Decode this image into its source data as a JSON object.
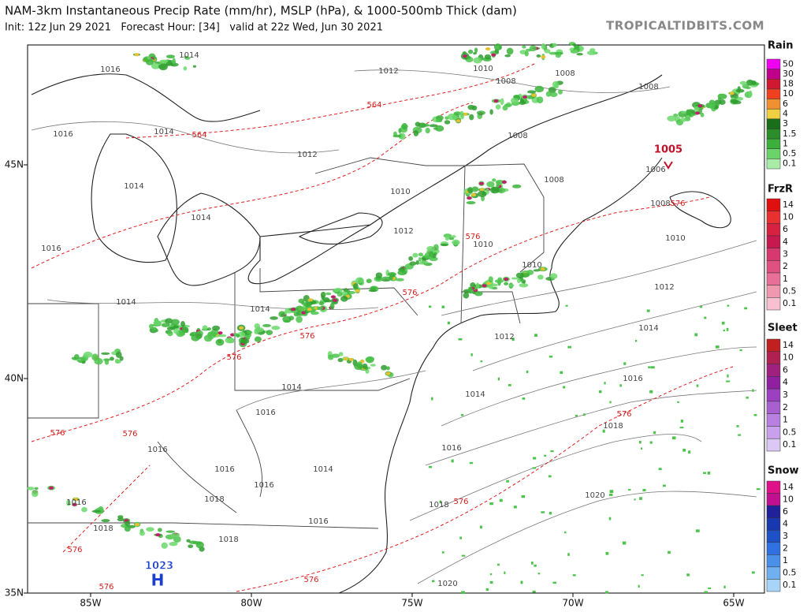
{
  "header": {
    "title": "NAM-3km Instantaneous Precip Rate (mm/hr), MSLP (hPa), & 1000-500mb Thick (dam)",
    "subtitle": "Init: 12z Jun 29 2021   Forecast Hour: [34]   valid at 22z Wed, Jun 30 2021",
    "site": "TROPICALTIDBITS.COM"
  },
  "map": {
    "lat_labels": [
      "45N",
      "40N",
      "35N"
    ],
    "lon_labels": [
      "85W",
      "80W",
      "75W",
      "70W",
      "65W"
    ],
    "isobar_labels": [
      "1014",
      "1016",
      "1012",
      "1010",
      "1008",
      "1008",
      "1008",
      "1014",
      "1016",
      "1012",
      "1008",
      "1006",
      "1010",
      "1014",
      "1014",
      "1008",
      "1008",
      "1010",
      "1012",
      "1016",
      "1010",
      "1010",
      "1012",
      "1014",
      "1014",
      "1014",
      "1012",
      "1016",
      "1014",
      "1014",
      "1016",
      "1018",
      "1016",
      "1016",
      "1016",
      "1014",
      "1016",
      "1016",
      "1018",
      "1018",
      "1020",
      "1016",
      "1018",
      "1018",
      "1020"
    ],
    "thickness_labels": [
      "564",
      "564",
      "576",
      "576",
      "576",
      "576",
      "576",
      "576",
      "576",
      "576",
      "576",
      "576",
      "576",
      "576"
    ],
    "high": {
      "label": "H",
      "pressure": "1023"
    },
    "low": {
      "pressure": "1005"
    }
  },
  "legends": [
    {
      "title": "Rain",
      "labels": [
        "50",
        "30",
        "18",
        "10",
        "6",
        "4",
        "3",
        "1.5",
        "1",
        "0.5",
        "0.1"
      ]
    },
    {
      "title": "FrzR",
      "labels": [
        "14",
        "10",
        "6",
        "4",
        "3",
        "2",
        "1",
        "0.5",
        "0.1"
      ]
    },
    {
      "title": "Sleet",
      "labels": [
        "14",
        "10",
        "6",
        "4",
        "3",
        "2",
        "1",
        "0.5",
        "0.1"
      ]
    },
    {
      "title": "Snow",
      "labels": [
        "14",
        "10",
        "6",
        "4",
        "3",
        "2",
        "1",
        "0.5",
        "0.1"
      ]
    }
  ]
}
